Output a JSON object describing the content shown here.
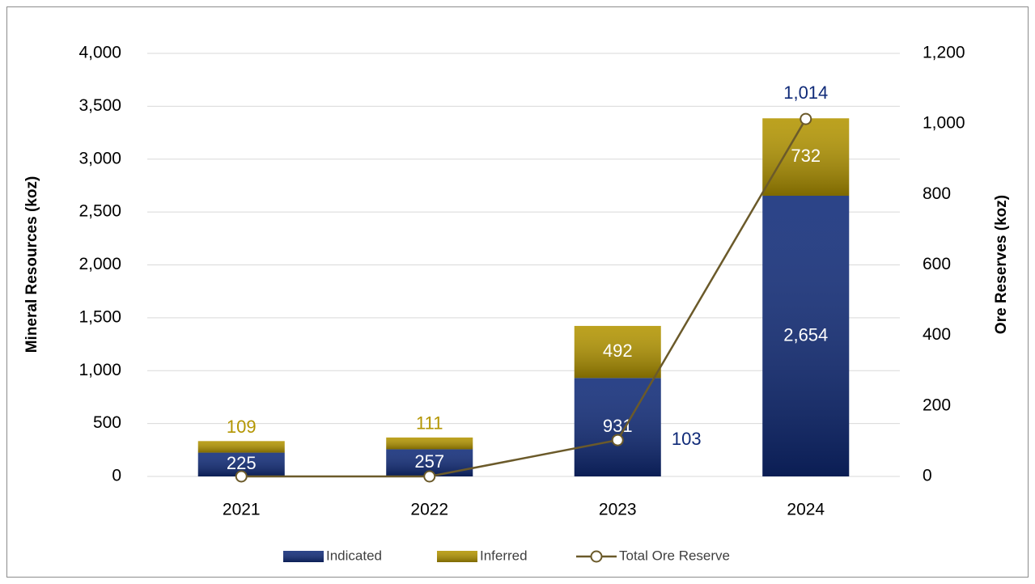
{
  "chart_data": {
    "type": "bar-line",
    "categories": [
      "2021",
      "2022",
      "2023",
      "2024"
    ],
    "series": [
      {
        "name": "Indicated",
        "color": "#0f2a78",
        "values": [
          225,
          257,
          931,
          2654
        ],
        "value_labels": [
          "225",
          "257",
          "931",
          "2,654"
        ]
      },
      {
        "name": "Inferred",
        "color": "#b39500",
        "values": [
          109,
          111,
          492,
          732
        ]
      },
      {
        "name": "Total Ore Reserve",
        "color": "#6b5a2a",
        "axis": "y2",
        "type": "line",
        "values": [
          0,
          0,
          103,
          1014
        ],
        "value_labels": [
          null,
          null,
          "103",
          "1,014"
        ]
      }
    ],
    "ylabel": "Mineral Resources (koz)",
    "y2label": "Ore Reserves (koz)",
    "ylim": [
      0,
      4000
    ],
    "yticks": [
      0,
      500,
      {
        "value": 1000,
        "label": "1,000"
      },
      {
        "value": 1500,
        "label": "1,500"
      },
      {
        "value": 2000,
        "label": "2,000"
      },
      {
        "value": 2500,
        "label": "2,500"
      },
      {
        "value": 3000,
        "label": "3,000"
      },
      {
        "value": 3500,
        "label": "3,500"
      },
      {
        "value": 4000,
        "label": "4,000"
      }
    ],
    "y2lim": [
      0,
      1200
    ],
    "y2ticks": [
      0,
      200,
      400,
      600,
      800,
      {
        "value": 1000,
        "label": "1,000"
      },
      {
        "value": 1200,
        "label": "1,200"
      }
    ],
    "grid": true,
    "legend": "bottom"
  }
}
